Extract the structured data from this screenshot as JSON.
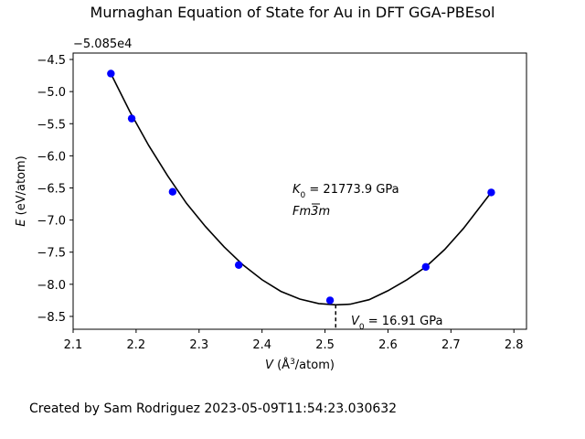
{
  "page": {
    "footer": "Created by Sam Rodriguez 2023-05-09T11:54:23.030632"
  },
  "chart_data": {
    "type": "scatter",
    "title": "Murnaghan Equation of State for Au in DFT GGA-PBEsol",
    "xlabel": "V (Å³/atom)",
    "ylabel": "E (eV/atom)",
    "offset_text": "−5.085e4",
    "y_offset": -50850,
    "xlim": [
      2.1,
      2.82
    ],
    "ylim": [
      -8.7,
      -4.4
    ],
    "x_ticks": [
      2.1,
      2.2,
      2.3,
      2.4,
      2.5,
      2.6,
      2.7,
      2.8
    ],
    "x_tick_labels": [
      "2.1",
      "2.2",
      "2.3",
      "2.4",
      "2.5",
      "2.6",
      "2.7",
      "2.8"
    ],
    "y_ticks": [
      -8.5,
      -8.0,
      -7.5,
      -7.0,
      -6.5,
      -6.0,
      -5.5,
      -5.0,
      -4.5
    ],
    "y_tick_labels": [
      "−8.5",
      "−8.0",
      "−7.5",
      "−7.0",
      "−6.5",
      "−6.0",
      "−5.5",
      "−5.0",
      "−4.5"
    ],
    "grid": false,
    "points": {
      "color": "#0000ff",
      "x": [
        2.16,
        2.193,
        2.258,
        2.363,
        2.508,
        2.66,
        2.764
      ],
      "y": [
        -4.72,
        -5.42,
        -6.56,
        -7.7,
        -8.25,
        -7.73,
        -6.57
      ]
    },
    "fit_curve": {
      "color": "#000000",
      "x": [
        2.16,
        2.19,
        2.22,
        2.25,
        2.28,
        2.31,
        2.34,
        2.37,
        2.4,
        2.43,
        2.46,
        2.49,
        2.517,
        2.54,
        2.57,
        2.6,
        2.63,
        2.66,
        2.69,
        2.72,
        2.764
      ],
      "y": [
        -4.72,
        -5.31,
        -5.84,
        -6.31,
        -6.74,
        -7.1,
        -7.42,
        -7.7,
        -7.93,
        -8.11,
        -8.23,
        -8.3,
        -8.32,
        -8.31,
        -8.24,
        -8.1,
        -7.93,
        -7.73,
        -7.46,
        -7.13,
        -6.57
      ]
    },
    "v0_marker": {
      "x": 2.517,
      "y": -8.32
    },
    "annotations": {
      "k0_prefix": "K",
      "k0_sub": "0",
      "k0_value": " = 21773.9 GPa",
      "space_group_main": "Fm",
      "space_group_bar": "3",
      "space_group_end": "m",
      "v0_prefix": "V",
      "v0_sub": "0",
      "v0_value": " = 16.91 GPa"
    }
  }
}
